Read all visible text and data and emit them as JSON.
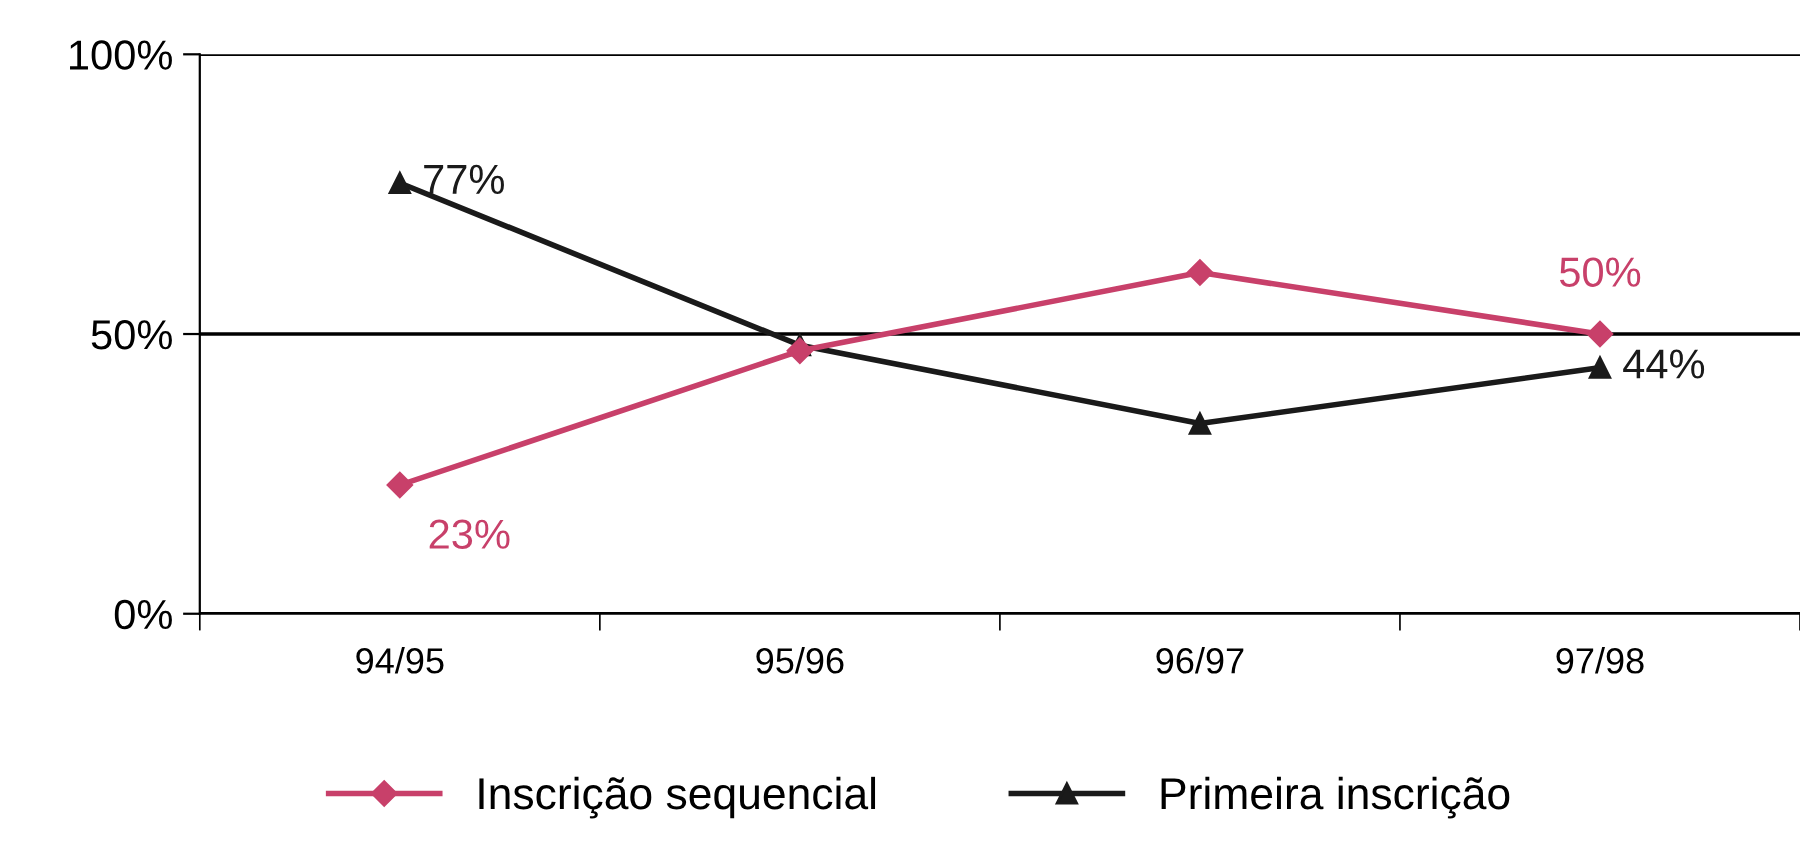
{
  "chart_data": {
    "type": "line",
    "categories": [
      "94/95",
      "95/96",
      "96/97",
      "97/98"
    ],
    "series": [
      {
        "name": "Inscrição sequencial",
        "color": "#c8406a",
        "marker": "diamond",
        "values": [
          23,
          47,
          61,
          50
        ],
        "value_labels": [
          "23%",
          null,
          null,
          "50%"
        ]
      },
      {
        "name": "Primeira inscrição",
        "color": "#1a1a1a",
        "marker": "triangle",
        "values": [
          77,
          48,
          34,
          44
        ],
        "value_labels": [
          "77%",
          null,
          null,
          "44%"
        ]
      }
    ],
    "ylim": [
      0,
      100
    ],
    "yticks": [
      {
        "value": 0,
        "label": "0%"
      },
      {
        "value": 50,
        "label": "50%"
      },
      {
        "value": 100,
        "label": "100%"
      }
    ],
    "grid": "y",
    "legend": "bottom",
    "line_style": "solid"
  }
}
